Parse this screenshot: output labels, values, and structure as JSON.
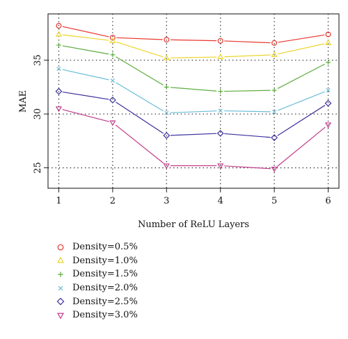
{
  "chart_data": {
    "type": "line",
    "xlabel": "Number of ReLU Layers",
    "ylabel": "MAE",
    "x": [
      1,
      2,
      3,
      4,
      5,
      6
    ],
    "xticks": [
      "1",
      "2",
      "3",
      "4",
      "5",
      "6"
    ],
    "yticks": [
      "25",
      "30",
      "35"
    ],
    "ytick_values": [
      25,
      30,
      35
    ],
    "xlim": [
      0.8,
      6.2
    ],
    "ylim": [
      23.1,
      39.3
    ],
    "grid": "dotted at each x tick and at y = 25, 30, 35",
    "legend_position": "below the plot",
    "series": [
      {
        "name": "Density=0.5%",
        "marker": "circle",
        "color": "#e8352b",
        "values": [
          38.2,
          37.1,
          36.9,
          36.8,
          36.6,
          37.4
        ]
      },
      {
        "name": "Density=1.0%",
        "marker": "triangle-up",
        "color": "#ecd52a",
        "values": [
          37.4,
          36.8,
          35.2,
          35.3,
          35.5,
          36.6
        ]
      },
      {
        "name": "Density=1.5%",
        "marker": "plus",
        "color": "#5aab3c",
        "values": [
          36.4,
          35.5,
          32.5,
          32.1,
          32.2,
          34.8
        ]
      },
      {
        "name": "Density=2.0%",
        "marker": "x",
        "color": "#68bdd6",
        "values": [
          34.2,
          33.1,
          30.1,
          30.3,
          30.2,
          32.2
        ]
      },
      {
        "name": "Density=2.5%",
        "marker": "diamond",
        "color": "#3a2f9c",
        "values": [
          32.1,
          31.3,
          28.0,
          28.2,
          27.8,
          31.0
        ]
      },
      {
        "name": "Density=3.0%",
        "marker": "triangle-down",
        "color": "#c43b8a",
        "values": [
          30.5,
          29.2,
          25.2,
          25.2,
          24.9,
          29.0
        ]
      }
    ]
  }
}
